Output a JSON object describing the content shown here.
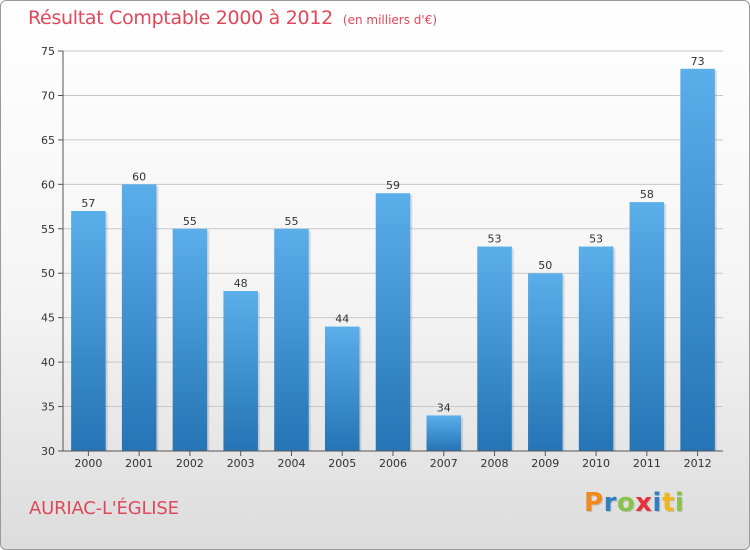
{
  "title": "Résultat Comptable 2000 à 2012",
  "subtitle": "(en milliers d'€)",
  "commune": "AURIAC-L'ÉGLISE",
  "logo": {
    "text": "Proxiti",
    "letters": [
      {
        "char": "P",
        "color": "#f08a1c"
      },
      {
        "char": "r",
        "color": "#2f7fc1"
      },
      {
        "char": "o",
        "color": "#8bc34a"
      },
      {
        "char": "x",
        "color": "#e6313a"
      },
      {
        "char": "i",
        "color": "#2f7fc1"
      },
      {
        "char": "t",
        "color": "#f2b51a"
      },
      {
        "char": "i",
        "color": "#8bc34a"
      }
    ]
  },
  "colors": {
    "accent": "#e0475a",
    "bar_top": "#5aaeea",
    "bar_bottom": "#2574b5",
    "grid": "#c8c8c8"
  },
  "chart_data": {
    "type": "bar",
    "title": "Résultat Comptable 2000 à 2012",
    "subtitle": "(en milliers d'€)",
    "categories": [
      "2000",
      "2001",
      "2002",
      "2003",
      "2004",
      "2005",
      "2006",
      "2007",
      "2008",
      "2009",
      "2010",
      "2011",
      "2012"
    ],
    "values": [
      57,
      60,
      55,
      48,
      55,
      44,
      59,
      34,
      53,
      50,
      53,
      58,
      73
    ],
    "ylim": [
      30,
      75
    ],
    "yticks": [
      30,
      35,
      40,
      45,
      50,
      55,
      60,
      65,
      70,
      75
    ],
    "grid": true,
    "xlabel": "",
    "ylabel": ""
  }
}
